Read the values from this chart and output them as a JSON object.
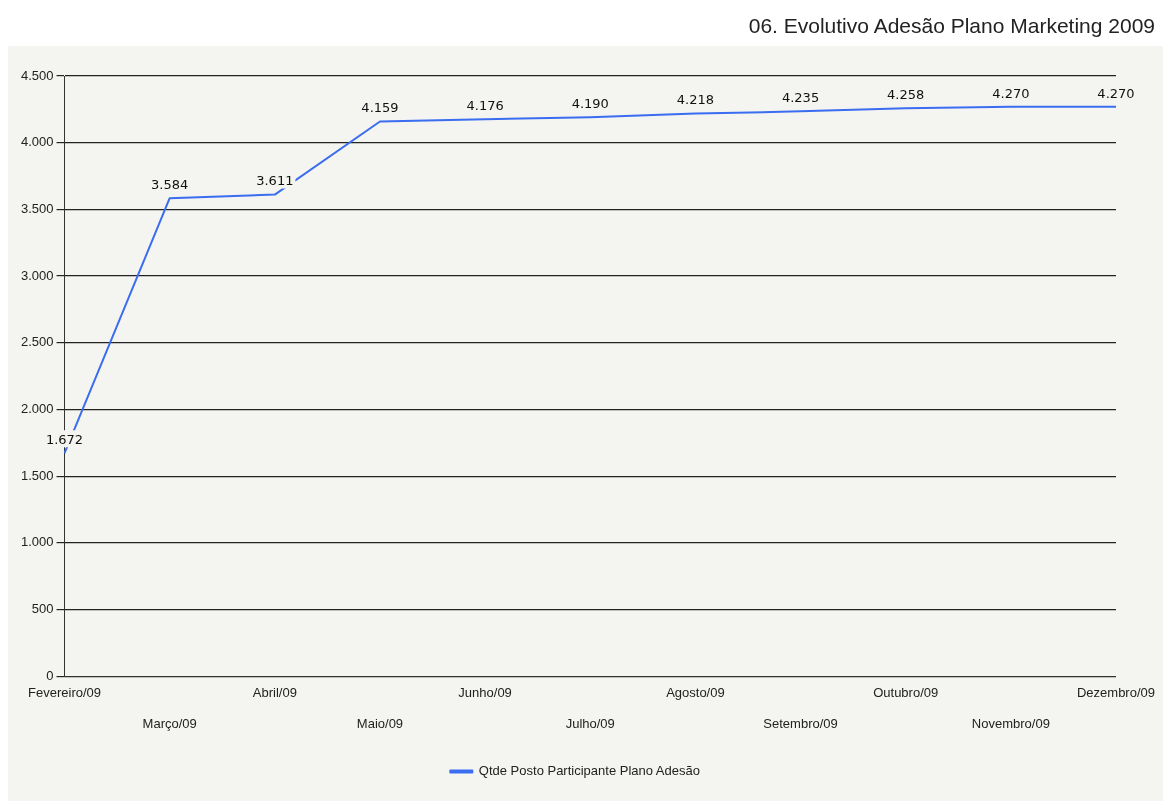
{
  "chart_data": {
    "type": "line",
    "title": "06. Evolutivo Adesão Plano Marketing 2009",
    "categories": [
      "Fevereiro/09",
      "Março/09",
      "Abril/09",
      "Maio/09",
      "Junho/09",
      "Julho/09",
      "Agosto/09",
      "Setembro/09",
      "Outubro/09",
      "Novembro/09",
      "Dezembro/09"
    ],
    "series": [
      {
        "name": "Qtde Posto Participante Plano Adesão",
        "color": "#3a6df0",
        "values": [
          1672,
          3584,
          3611,
          4159,
          4176,
          4190,
          4218,
          4235,
          4258,
          4270,
          4270
        ],
        "value_labels": [
          "1.672",
          "3.584",
          "3.611",
          "4.159",
          "4.176",
          "4.190",
          "4.218",
          "4.235",
          "4.258",
          "4.270",
          "4.270"
        ]
      }
    ],
    "ylim": [
      0,
      4500
    ],
    "yticks": [
      {
        "value": 0,
        "label": "0"
      },
      {
        "value": 500,
        "label": "500"
      },
      {
        "value": 1000,
        "label": "1.000"
      },
      {
        "value": 1500,
        "label": "1.500"
      },
      {
        "value": 2000,
        "label": "2.000"
      },
      {
        "value": 2500,
        "label": "2.500"
      },
      {
        "value": 3000,
        "label": "3.000"
      },
      {
        "value": 3500,
        "label": "3.500"
      },
      {
        "value": 4000,
        "label": "4.000"
      },
      {
        "value": 4500,
        "label": "4.500"
      }
    ],
    "grid": "y",
    "legend": "bottom",
    "marker": "none",
    "line_style": "solid"
  }
}
